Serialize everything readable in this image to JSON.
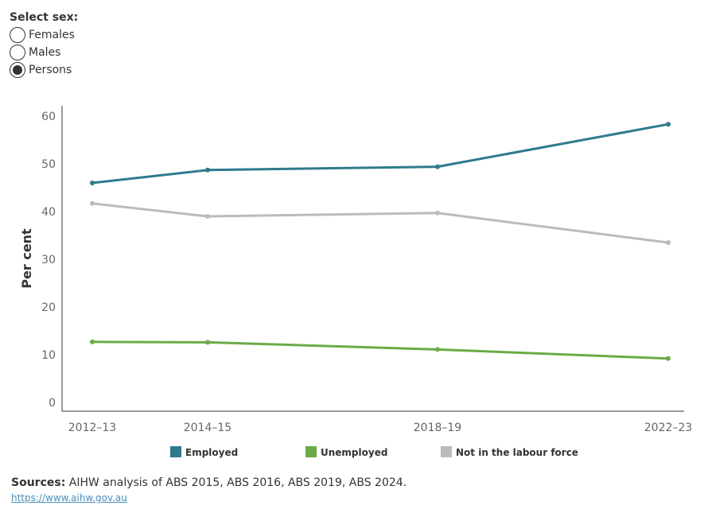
{
  "filter": {
    "title": "Select sex:",
    "options": [
      {
        "label": "Females",
        "checked": false
      },
      {
        "label": "Males",
        "checked": false
      },
      {
        "label": "Persons",
        "checked": true
      }
    ]
  },
  "chart_data": {
    "type": "line",
    "title": "",
    "xlabel": "",
    "ylabel": "Per cent",
    "x": [
      "2012–13",
      "2014–15",
      "2018–19",
      "2022–23"
    ],
    "x_years": [
      2012,
      2014,
      2018,
      2022
    ],
    "ylim": [
      0,
      60
    ],
    "yticks": [
      0,
      10,
      20,
      30,
      40,
      50,
      60
    ],
    "grid": false,
    "legend_position": "bottom",
    "series": [
      {
        "name": "Employed",
        "color": "#2e7a8c",
        "values": [
          46.0,
          48.7,
          49.4,
          58.3
        ]
      },
      {
        "name": "Unemployed",
        "color": "#6aab45",
        "values": [
          12.7,
          12.6,
          11.1,
          9.2
        ]
      },
      {
        "name": "Not in the labour force",
        "color": "#bbbbbb",
        "values": [
          41.7,
          39.0,
          39.7,
          33.5
        ]
      }
    ]
  },
  "footer": {
    "sources_label": "Sources:",
    "sources_text": " AIHW analysis of ABS 2015, ABS 2016, ABS 2019, ABS 2024.",
    "link": "https://www.aihw.gov.au"
  }
}
